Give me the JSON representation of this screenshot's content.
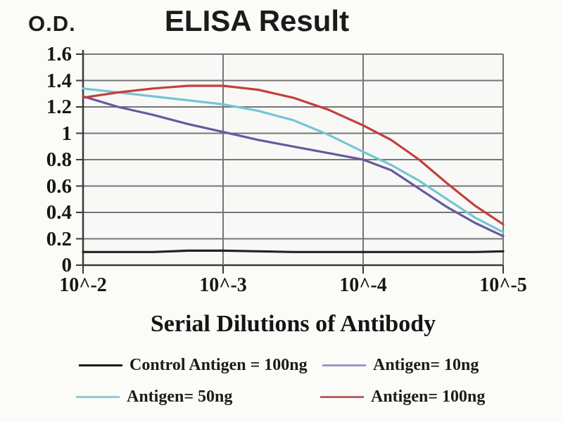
{
  "title": "ELISA Result",
  "y_axis_unit": "O.D.",
  "x_axis_title": "Serial Dilutions of Antibody",
  "chart_data": {
    "type": "line",
    "title": "ELISA Result",
    "ylabel": "O.D.",
    "xlabel": "Serial Dilutions of Antibody",
    "ylim": [
      0,
      1.6
    ],
    "grid": true,
    "legend_position": "bottom",
    "y_tick_labels": [
      "1.6",
      "1.4",
      "1.2",
      "1",
      "0.8",
      "0.6",
      "0.4",
      "0.2",
      "0"
    ],
    "y_tick_values": [
      1.6,
      1.4,
      1.2,
      1.0,
      0.8,
      0.6,
      0.4,
      0.2,
      0
    ],
    "x_tick_labels": [
      "10^-2",
      "10^-3",
      "10^-4",
      "10^-5"
    ],
    "x_tick_values": [
      2,
      3,
      4,
      5
    ],
    "x_scale_note": "dilution 10^-x",
    "x": [
      2,
      2.25,
      2.5,
      2.75,
      3,
      3.25,
      3.5,
      3.75,
      4,
      4.2,
      4.4,
      4.6,
      4.8,
      5
    ],
    "series": [
      {
        "name": "Control Antigen = 100ng",
        "color": "#222222",
        "swatch_color": "#1a1a1a",
        "values": [
          0.1,
          0.1,
          0.1,
          0.11,
          0.11,
          0.105,
          0.1,
          0.1,
          0.1,
          0.1,
          0.1,
          0.1,
          0.1,
          0.105
        ]
      },
      {
        "name": "Antigen= 10ng",
        "color": "#655a9e",
        "swatch_color": "#a295c6",
        "values": [
          1.28,
          1.2,
          1.14,
          1.07,
          1.01,
          0.95,
          0.9,
          0.85,
          0.8,
          0.72,
          0.58,
          0.44,
          0.32,
          0.22
        ]
      },
      {
        "name": "Antigen= 50ng",
        "color": "#72c6d4",
        "swatch_color": "#8fccd4",
        "values": [
          1.34,
          1.31,
          1.28,
          1.25,
          1.22,
          1.17,
          1.1,
          0.99,
          0.86,
          0.76,
          0.64,
          0.5,
          0.36,
          0.25
        ]
      },
      {
        "name": "Antigen= 100ng",
        "color": "#c33f3c",
        "swatch_color": "#b75f68",
        "values": [
          1.27,
          1.31,
          1.34,
          1.36,
          1.36,
          1.33,
          1.27,
          1.18,
          1.06,
          0.95,
          0.8,
          0.62,
          0.45,
          0.31
        ]
      }
    ],
    "colors": {
      "gridline": "#757575",
      "axis": "#3a3a3a",
      "plot_background": "#f8f9f6"
    }
  }
}
